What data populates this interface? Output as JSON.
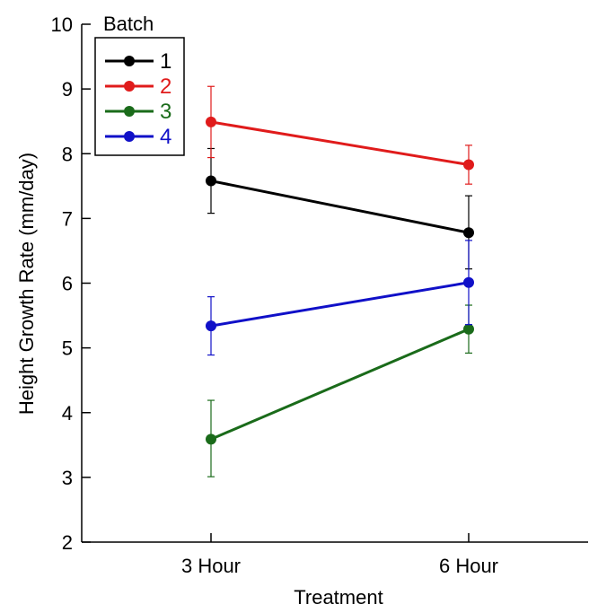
{
  "chart_data": {
    "type": "line",
    "title": "",
    "xlabel": "Treatment",
    "ylabel": "Height Growth Rate (mm/day)",
    "categories": [
      "3 Hour",
      "6 Hour"
    ],
    "ylim": [
      2,
      10
    ],
    "yticks": [
      2,
      3,
      4,
      5,
      6,
      7,
      8,
      9,
      10
    ],
    "grid": false,
    "legend": {
      "title": "Batch",
      "placement": "top-left"
    },
    "series": [
      {
        "name": "1",
        "color": "#000000",
        "values": [
          7.58,
          6.78
        ],
        "err_low": [
          7.08,
          6.22
        ],
        "err_high": [
          8.08,
          7.35
        ]
      },
      {
        "name": "2",
        "color": "#e01b1b",
        "values": [
          8.49,
          7.83
        ],
        "err_low": [
          7.94,
          7.53
        ],
        "err_high": [
          9.04,
          8.13
        ]
      },
      {
        "name": "3",
        "color": "#1a6b1a",
        "values": [
          3.59,
          5.29
        ],
        "err_low": [
          3.01,
          4.92
        ],
        "err_high": [
          4.19,
          5.66
        ]
      },
      {
        "name": "4",
        "color": "#1010c8",
        "values": [
          5.34,
          6.01
        ],
        "err_low": [
          4.89,
          5.36
        ],
        "err_high": [
          5.79,
          6.66
        ]
      }
    ]
  }
}
